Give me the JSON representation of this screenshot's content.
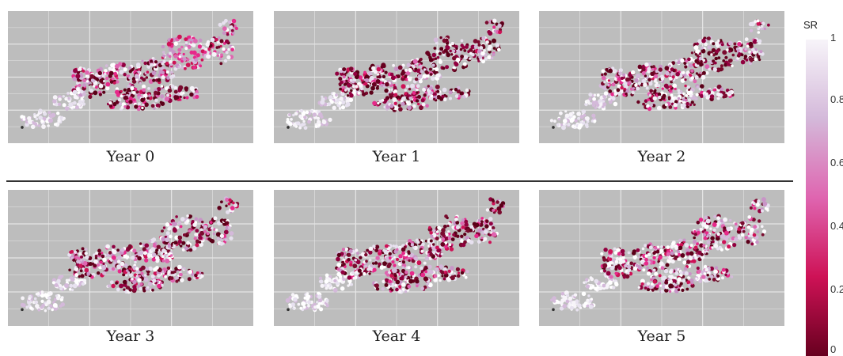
{
  "panels": [
    {
      "caption": "Year 0",
      "mix": {
        "dark": 0.35,
        "mid": 0.3,
        "light": 0.35
      },
      "ne_hot": 1
    },
    {
      "caption": "Year 1",
      "mix": {
        "dark": 0.4,
        "mid": 0.2,
        "light": 0.4
      },
      "ne_hot": 2
    },
    {
      "caption": "Year 2",
      "mix": {
        "dark": 0.35,
        "mid": 0.2,
        "light": 0.45
      },
      "ne_hot": 2
    },
    {
      "caption": "Year 3",
      "mix": {
        "dark": 0.35,
        "mid": 0.25,
        "light": 0.4
      },
      "ne_hot": 0
    },
    {
      "caption": "Year 4",
      "mix": {
        "dark": 0.35,
        "mid": 0.25,
        "light": 0.4
      },
      "ne_hot": 0
    },
    {
      "caption": "Year 5",
      "mix": {
        "dark": 0.3,
        "mid": 0.25,
        "light": 0.45
      },
      "ne_hot": 0
    }
  ],
  "legend": {
    "title": "SR",
    "ticks": [
      "1",
      "0.8",
      "0.6",
      "0.4",
      "0.2",
      "0"
    ],
    "colors": [
      "#67001f",
      "#ce1256",
      "#df65b0",
      "#d4b9da",
      "#f7f4f9"
    ]
  },
  "colors": {
    "map_bg": "#bdbdbd",
    "grid": "#e6e6e6"
  }
}
